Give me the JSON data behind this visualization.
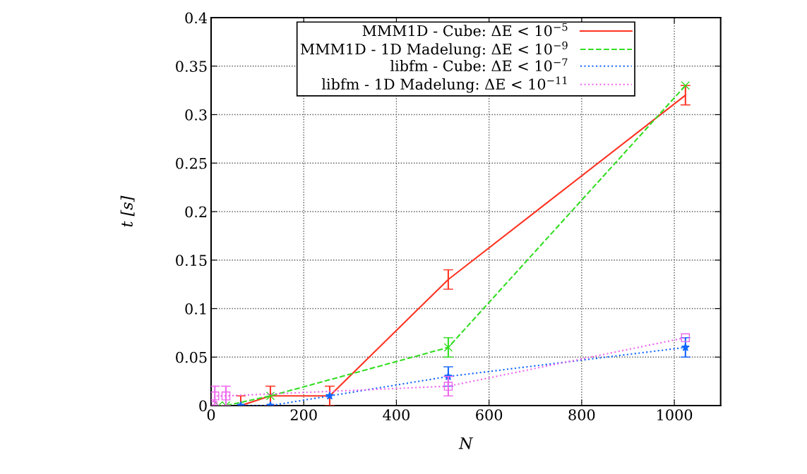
{
  "chart_data": {
    "type": "line",
    "xlabel": "N",
    "ylabel": "t [s]",
    "xlim": [
      0,
      1100
    ],
    "xticks": [
      0,
      200,
      400,
      600,
      800,
      1000
    ],
    "ylim": [
      0,
      0.4
    ],
    "yticks": [
      0,
      0.05,
      0.1,
      0.15,
      0.2,
      0.25,
      0.3,
      0.35,
      0.4
    ],
    "grid": true,
    "legend": "top",
    "series": [
      {
        "name": "MMM1D - Cube: ΔE < 10$^{−5}$",
        "color": "#ff3322",
        "line_style": "solid",
        "marker": "none",
        "x": [
          64,
          128,
          256,
          512,
          1024
        ],
        "values": [
          0,
          0.01,
          0.01,
          0.13,
          0.32
        ],
        "errors": [
          0.01,
          0.01,
          0.01,
          0.01,
          0.01
        ]
      },
      {
        "name": "MMM1D - 1D Madelung: ΔE < 10$^{−9}$",
        "color": "#33dd22",
        "line_style": "dashed",
        "marker": "cross",
        "x": [
          16,
          32,
          128,
          512,
          1024
        ],
        "values": [
          0,
          0,
          0.01,
          0.06,
          0.33
        ],
        "errors": [
          null,
          null,
          null,
          0.01,
          null
        ]
      },
      {
        "name": "libfm - Cube: ΔE < 10$^{−7}$",
        "color": "#1166ff",
        "line_style": "dotted",
        "marker": "star",
        "x": [
          64,
          128,
          256,
          512,
          1024
        ],
        "values": [
          0,
          0,
          0.01,
          0.03,
          0.06
        ],
        "errors": [
          null,
          null,
          null,
          0.01,
          0.01
        ]
      },
      {
        "name": "libfm - 1D Madelung: ΔE < 10$^{−11}$",
        "color": "#ee66ee",
        "line_style": "dotted",
        "marker": "square",
        "x": [
          4,
          8,
          32,
          512,
          1024
        ],
        "values": [
          0,
          0.01,
          0.01,
          0.02,
          0.07
        ],
        "errors": [
          null,
          0.01,
          0.01,
          0.01,
          null
        ]
      }
    ]
  }
}
